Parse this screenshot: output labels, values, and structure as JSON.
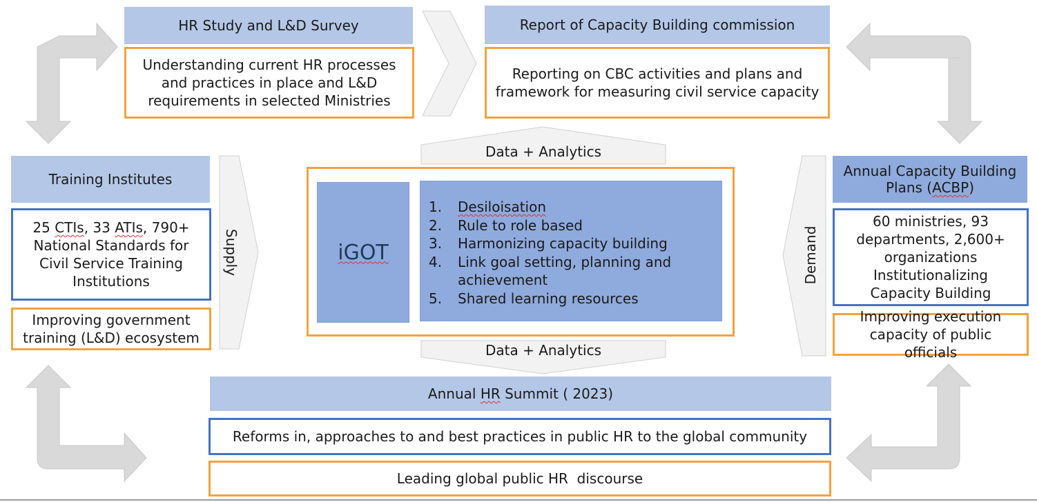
{
  "top_left": {
    "header": "HR Study and L&D Survey",
    "body": "Understanding current HR processes and practices in place and L&D requirements in selected Ministries"
  },
  "top_right": {
    "header": "Report of Capacity Building commission",
    "body": "Reporting on CBC activities and plans and framework for measuring civil service capacity"
  },
  "left": {
    "header": "Training Institutes",
    "body_parts": [
      "25 ",
      "CTIs",
      ", 33 ",
      "ATIs",
      ", 790+ National Standards for Civil Service Training Institutions"
    ],
    "outcome": "Improving government training (L&D) ecosystem",
    "arrow_label": "Supply"
  },
  "right": {
    "header_parts": [
      "Annual Capacity Building Plans (",
      "ACBP",
      ")"
    ],
    "body": "60 ministries, 93 departments, 2,600+ organizations Institutionalizing Capacity Building",
    "outcome": "Improving execution capacity of public officials",
    "arrow_label": "Demand"
  },
  "center": {
    "top_label": "Data + Analytics",
    "bottom_label": "Data + Analytics",
    "platform": "iGOT",
    "items": [
      {
        "num": "1.",
        "text": "Desiloisation"
      },
      {
        "num": "2.",
        "text": "Rule to role based"
      },
      {
        "num": "3.",
        "text": "Harmonizing capacity building"
      },
      {
        "num": "4.",
        "text": "Link goal setting, planning and achievement"
      },
      {
        "num": "5.",
        "text": "Shared learning resources"
      }
    ]
  },
  "bottom": {
    "header_parts": [
      "Annual ",
      "HR",
      " Summit ( 2023)"
    ],
    "body": "Reforms in, approaches to and best practices in public HR to the global community",
    "outcome": "Leading global public HR  discourse"
  },
  "colors": {
    "header_fill": "#b4c7e7",
    "header_fill_dark": "#8faadc",
    "orange_border": "#f4a23a",
    "blue_border": "#4472c4",
    "arrow_fill": "#d9d9d9",
    "chevron_fill": "#f2f2f2"
  }
}
